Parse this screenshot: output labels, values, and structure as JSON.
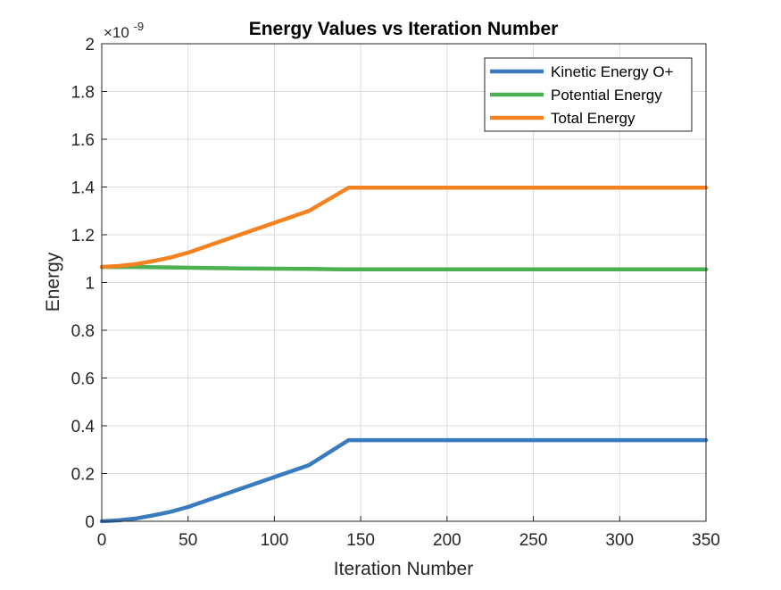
{
  "chart_data": {
    "type": "line",
    "title": "Energy Values vs Iteration Number",
    "xlabel": "Iteration Number",
    "ylabel": "Energy",
    "exponent_label": {
      "base": "×10",
      "power": "-9"
    },
    "xlim": [
      0,
      350
    ],
    "ylim": [
      0,
      2
    ],
    "xticks": [
      0,
      50,
      100,
      150,
      200,
      250,
      300,
      350
    ],
    "yticks": [
      0,
      0.2,
      0.4,
      0.6,
      0.8,
      1,
      1.2,
      1.4,
      1.6,
      1.8,
      2
    ],
    "ytick_labels": [
      "0",
      "0.2",
      "0.4",
      "0.6",
      "0.8",
      "1",
      "1.2",
      "1.4",
      "1.6",
      "1.8",
      "2"
    ],
    "grid": true,
    "legend_position": "top-right",
    "series": [
      {
        "name": "Kinetic Energy O+",
        "color": "#3a7bbf",
        "x": [
          0,
          10,
          20,
          30,
          40,
          50,
          60,
          80,
          100,
          120,
          143,
          150,
          200,
          250,
          300,
          350
        ],
        "y": [
          0.0,
          0.004,
          0.012,
          0.025,
          0.04,
          0.06,
          0.085,
          0.135,
          0.185,
          0.235,
          0.34,
          0.34,
          0.34,
          0.34,
          0.34,
          0.34
        ]
      },
      {
        "name": "Potential Energy",
        "color": "#4caf50",
        "x": [
          0,
          20,
          40,
          60,
          80,
          100,
          120,
          143,
          150,
          200,
          250,
          300,
          350
        ],
        "y": [
          1.065,
          1.065,
          1.063,
          1.061,
          1.059,
          1.058,
          1.057,
          1.055,
          1.055,
          1.055,
          1.055,
          1.055,
          1.055
        ]
      },
      {
        "name": "Total Energy",
        "color": "#f58220",
        "x": [
          0,
          10,
          20,
          30,
          40,
          50,
          60,
          80,
          100,
          120,
          143,
          150,
          200,
          250,
          300,
          350
        ],
        "y": [
          1.065,
          1.069,
          1.077,
          1.09,
          1.105,
          1.125,
          1.15,
          1.2,
          1.25,
          1.3,
          1.397,
          1.397,
          1.397,
          1.397,
          1.397,
          1.397
        ]
      }
    ]
  }
}
